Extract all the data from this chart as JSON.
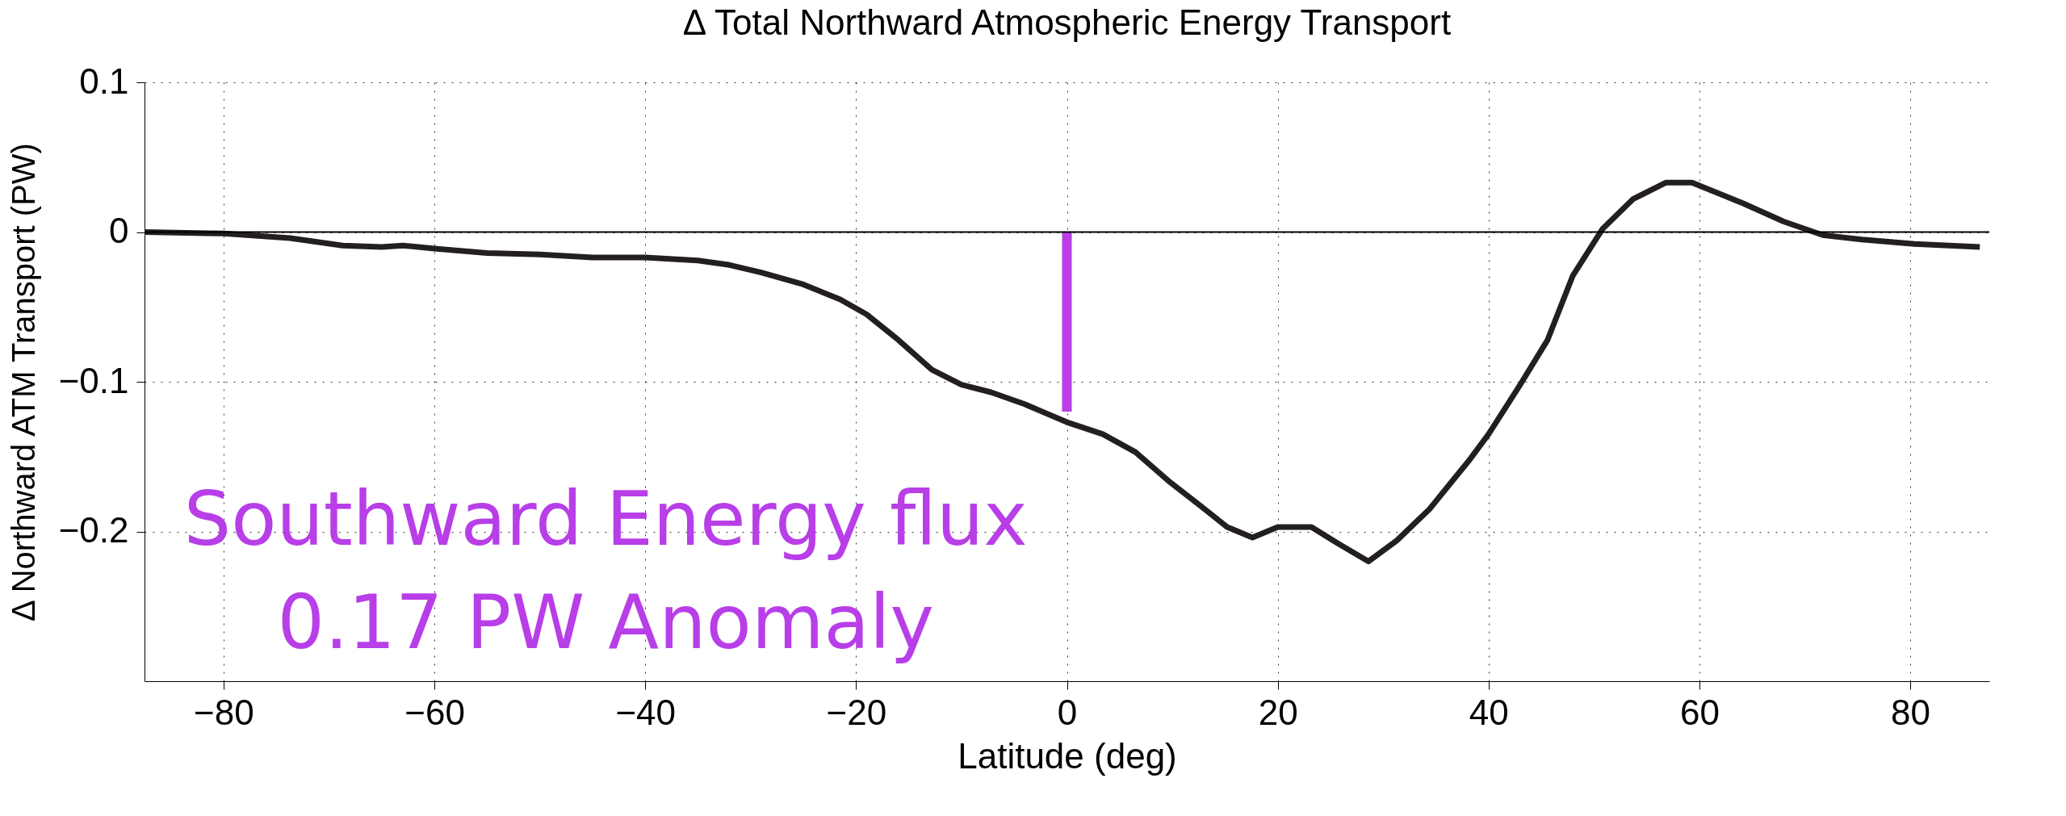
{
  "chart_data": {
    "type": "line",
    "title": "Δ Total Northward Atmospheric Energy Transport",
    "xlabel": "Latitude (deg)",
    "ylabel": "Δ Northward ATM Transport (PW)",
    "xlim": [
      -87.5,
      87.5
    ],
    "xticks": [
      -80,
      -60,
      -40,
      -20,
      0,
      20,
      40,
      60,
      80
    ],
    "ylim": [
      -0.3,
      0.1
    ],
    "yticks": [
      -0.2,
      -0.1,
      0,
      0.1
    ],
    "grid": true,
    "line_style": "solid",
    "marker": "none",
    "series": [
      {
        "color": "#231f20",
        "x": [
          -87.5,
          -80,
          -73.7,
          -68.7,
          -65,
          -63,
          -60,
          -55,
          -50,
          -45,
          -40,
          -35,
          -32,
          -29,
          -25,
          -21.5,
          -19,
          -16,
          -12.8,
          -10,
          -7.2,
          -4,
          0,
          3.4,
          6.5,
          9.6,
          12.7,
          15.2,
          17.6,
          20,
          23.2,
          25.7,
          28.6,
          31.3,
          34.4,
          38.1,
          40,
          43,
          45.6,
          48,
          50.8,
          53.7,
          56.8,
          59.3,
          64.2,
          68,
          71.7,
          75.4,
          80.4,
          86.6
        ],
        "values": [
          0,
          -0.001,
          -0.004,
          -0.009,
          -0.01,
          -0.009,
          -0.011,
          -0.014,
          -0.015,
          -0.017,
          -0.017,
          -0.019,
          -0.022,
          -0.027,
          -0.035,
          -0.045,
          -0.055,
          -0.072,
          -0.092,
          -0.102,
          -0.107,
          -0.115,
          -0.127,
          -0.135,
          -0.147,
          -0.166,
          -0.183,
          -0.197,
          -0.204,
          -0.197,
          -0.197,
          -0.208,
          -0.22,
          -0.206,
          -0.185,
          -0.153,
          -0.135,
          -0.102,
          -0.072,
          -0.029,
          0.002,
          0.022,
          0.033,
          0.033,
          0.019,
          0.007,
          -0.002,
          -0.005,
          -0.008,
          -0.01
        ]
      },
      {
        "color": "#b83ee8",
        "x": [
          0,
          0
        ],
        "values": [
          0,
          -0.12
        ]
      }
    ],
    "ref_lines": [
      {
        "axis": "y",
        "value": 0,
        "color": "#000000"
      }
    ],
    "annotations": [
      "Southward Energy flux\n0.17 PW Anomaly"
    ]
  }
}
